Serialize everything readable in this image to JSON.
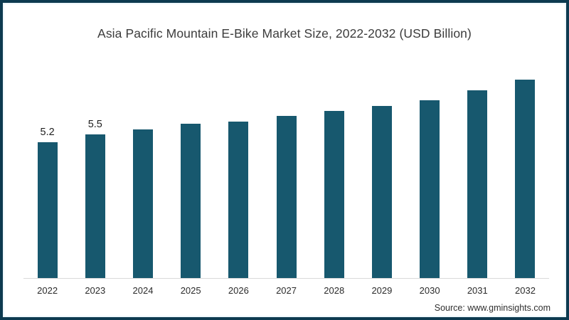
{
  "title": "Asia Pacific Mountain E-Bike Market Size, 2022-2032 (USD Billion)",
  "source_note": "Source: www.gminsights.com",
  "colors": {
    "bar": "#17586e",
    "frame_border": "#0d3a50",
    "axis_line": "#d9d9d9",
    "title_text": "#3c3c3c"
  },
  "chart_data": {
    "type": "bar",
    "title": "Asia Pacific Mountain E-Bike Market Size, 2022-2032 (USD Billion)",
    "categories": [
      "2022",
      "2023",
      "2024",
      "2025",
      "2026",
      "2027",
      "2028",
      "2029",
      "2030",
      "2031",
      "2032"
    ],
    "values": [
      5.2,
      5.5,
      5.7,
      5.9,
      6.0,
      6.2,
      6.4,
      6.6,
      6.8,
      7.2,
      7.6
    ],
    "data_labels": {
      "2022": "5.2",
      "2023": "5.5"
    },
    "xlabel": "",
    "ylabel": "",
    "ylim": [
      0,
      8
    ],
    "grid": false,
    "legend": false,
    "bar_color": "#17586e",
    "source_note": "Source: www.gminsights.com"
  }
}
